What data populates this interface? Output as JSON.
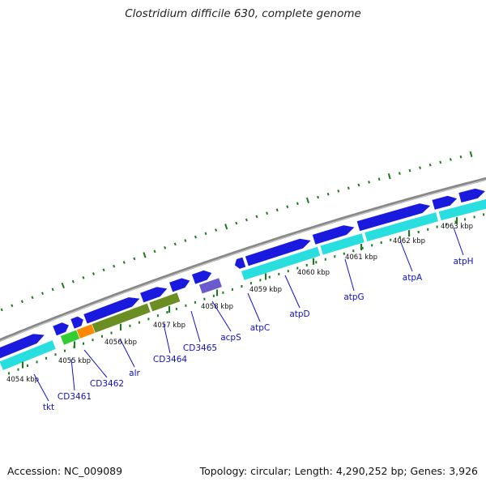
{
  "title": "Clostridium difficile 630, complete genome",
  "footer": {
    "accession": "Accession: NC_009089",
    "stats": "Topology: circular; Length: 4,290,252 bp; Genes: 3,926"
  },
  "colors": {
    "backbone": "#888888",
    "cds_blue": "#1a1adf",
    "cds_cyan": "#29dede",
    "cds_olive": "#6b8e23",
    "cds_green": "#33cc33",
    "cds_orange": "#ff8800",
    "cds_purple": "#6a5acd",
    "tick_green": "#1f7a1f",
    "label_blue": "#1010cc"
  },
  "scale": {
    "ticks": [
      {
        "label": "4054 kbp"
      },
      {
        "label": "4055 kbp"
      },
      {
        "label": "4056 kbp"
      },
      {
        "label": "4057 kbp"
      },
      {
        "label": "4058 kbp"
      },
      {
        "label": "4059 kbp"
      },
      {
        "label": "4060 kbp"
      },
      {
        "label": "4061 kbp"
      },
      {
        "label": "4062 kbp"
      },
      {
        "label": "4063 kbp"
      }
    ]
  },
  "gene_labels": [
    "tkt",
    "CD3461",
    "CD3462",
    "alr",
    "CD3464",
    "CD3465",
    "acpS",
    "atpC",
    "atpD",
    "atpG",
    "atpA",
    "atpH"
  ]
}
